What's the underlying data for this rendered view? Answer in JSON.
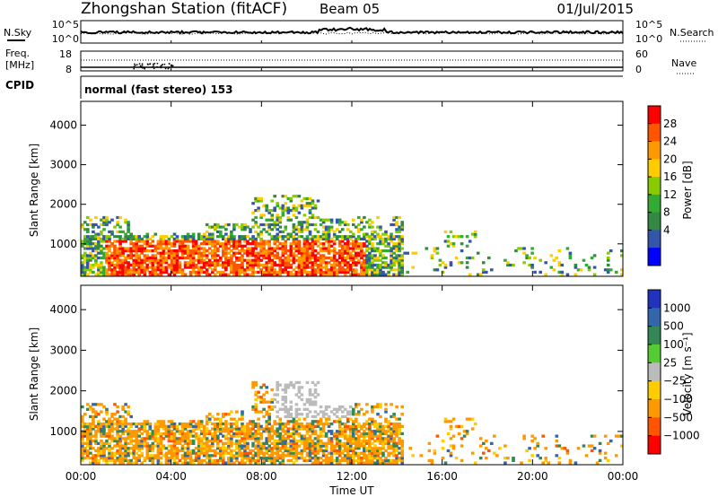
{
  "header": {
    "station": "Zhongshan Station (fitACF)",
    "beam": "Beam 05",
    "date": "01/Jul/2015"
  },
  "top_panels": {
    "nsky_label": "N.Sky",
    "nsearch_label": "N.Search",
    "scale_labels": [
      "10^5",
      "10^0",
      "10^5",
      "10^0"
    ],
    "freq_label": "Freq.",
    "freq_unit": "[MHz]",
    "freq_ticks": [
      "18",
      "8"
    ],
    "nave_label": "Nave",
    "nave_ticks": [
      "60",
      "0"
    ],
    "cpid_label": "CPID",
    "cpid_value": "normal (fast stereo) 153"
  },
  "chart_data": [
    {
      "type": "heatmap",
      "name": "power",
      "ylabel": "Slant Range [km]",
      "yticks": [
        1000,
        2000,
        3000,
        4000
      ],
      "ylim": [
        180,
        4600
      ],
      "xlim": [
        0,
        24
      ],
      "colorbar_label": "Power [dB]",
      "colorbar_ticks": [
        "28",
        "24",
        "20",
        "16",
        "12",
        "8",
        "4"
      ],
      "colorbar_colors": [
        "#ff0000",
        "#ff5500",
        "#ff9900",
        "#ffcc00",
        "#88cc00",
        "#33aa33",
        "#338844",
        "#3355aa",
        "#0000ff"
      ]
    },
    {
      "type": "heatmap",
      "name": "velocity",
      "ylabel": "Slant Range [km]",
      "yticks": [
        1000,
        2000,
        3000,
        4000
      ],
      "ylim": [
        180,
        4600
      ],
      "xlim": [
        0,
        24
      ],
      "xlabel": "Time UT",
      "xticks": [
        "00:00",
        "04:00",
        "08:00",
        "12:00",
        "16:00",
        "20:00",
        "00:00"
      ],
      "colorbar_label": "Velocity [m s⁻¹]",
      "colorbar_ticks": [
        "1000",
        "500",
        "100",
        "25",
        "−25",
        "−100",
        "−500",
        "−1000"
      ],
      "colorbar_colors": [
        "#2233bb",
        "#3366aa",
        "#338855",
        "#55cc33",
        "#bbbbbb",
        "#ffcc00",
        "#ff9900",
        "#ff5500",
        "#ff0000"
      ]
    }
  ]
}
